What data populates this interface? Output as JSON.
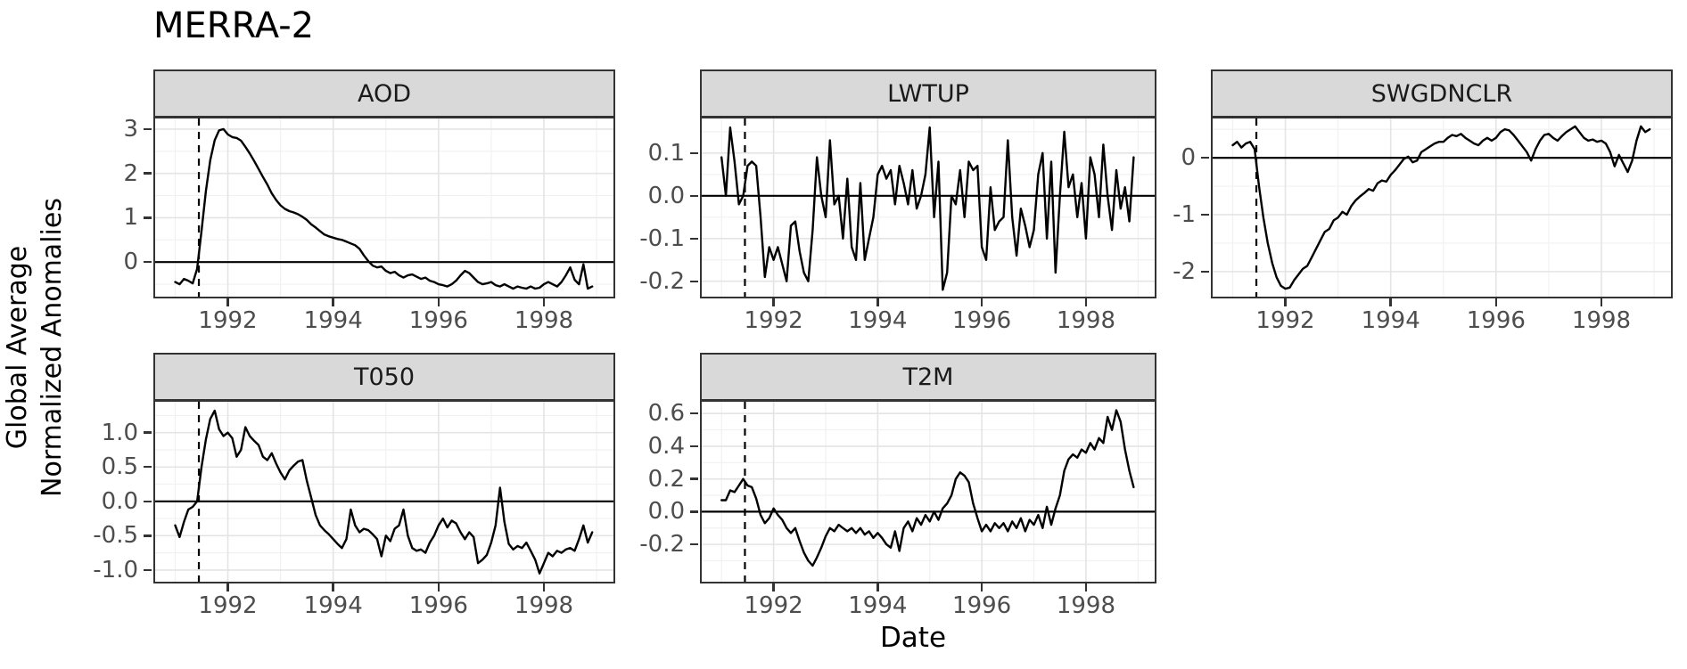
{
  "figure": {
    "title": "MERRA-2"
  },
  "axes": {
    "x_label": "Date",
    "y_label_line1": "Global Average",
    "y_label_line2": "Normalized Anomalies"
  },
  "colors": {
    "series_line": "#000000",
    "zero_line": "#000000",
    "event_line": "#000000",
    "strip_bg": "#d9d9d9",
    "panel_border": "#333333",
    "grid_major": "#e4e4e4",
    "grid_minor": "#f1f1f1",
    "tick_label": "#4d4d4d"
  },
  "chart_data": [
    {
      "type": "line",
      "title": "AOD",
      "xlabel": "Date",
      "ylabel": "Global Average Normalized Anomalies",
      "x_start": 1991.0,
      "x_step_years": 0.08333,
      "xlim": [
        1990.62,
        1999.32
      ],
      "ylim": [
        -0.78,
        3.24
      ],
      "xticks": [
        1992,
        1994,
        1996,
        1998
      ],
      "xtick_labels": [
        "1992",
        "1994",
        "1996",
        "1998"
      ],
      "ytick_values": [
        3,
        2,
        1,
        0
      ],
      "ytick_labels": [
        "3",
        "2",
        "1",
        "0"
      ],
      "hline": 0,
      "vline_dashed": 1991.45,
      "grid": true,
      "values": [
        -0.45,
        -0.5,
        -0.38,
        -0.42,
        -0.48,
        -0.15,
        0.7,
        1.6,
        2.3,
        2.75,
        2.97,
        3.0,
        2.88,
        2.82,
        2.8,
        2.74,
        2.6,
        2.45,
        2.28,
        2.1,
        1.92,
        1.75,
        1.55,
        1.4,
        1.28,
        1.2,
        1.15,
        1.12,
        1.08,
        1.02,
        0.95,
        0.85,
        0.78,
        0.7,
        0.62,
        0.58,
        0.55,
        0.52,
        0.5,
        0.46,
        0.42,
        0.38,
        0.3,
        0.15,
        0.02,
        -0.08,
        -0.12,
        -0.1,
        -0.2,
        -0.25,
        -0.22,
        -0.3,
        -0.35,
        -0.3,
        -0.28,
        -0.33,
        -0.38,
        -0.35,
        -0.42,
        -0.45,
        -0.5,
        -0.52,
        -0.55,
        -0.5,
        -0.42,
        -0.3,
        -0.2,
        -0.25,
        -0.35,
        -0.45,
        -0.5,
        -0.48,
        -0.45,
        -0.52,
        -0.55,
        -0.5,
        -0.55,
        -0.6,
        -0.55,
        -0.58,
        -0.6,
        -0.55,
        -0.6,
        -0.58,
        -0.5,
        -0.45,
        -0.5,
        -0.55,
        -0.45,
        -0.3,
        -0.12,
        -0.4,
        -0.5,
        -0.05,
        -0.6,
        -0.55
      ]
    },
    {
      "type": "line",
      "title": "LWTUP",
      "xlabel": "Date",
      "ylabel": "Global Average Normalized Anomalies",
      "x_start": 1991.0,
      "x_step_years": 0.08333,
      "xlim": [
        1990.62,
        1999.32
      ],
      "ylim": [
        -0.236,
        0.181
      ],
      "xticks": [
        1992,
        1994,
        1996,
        1998
      ],
      "xtick_labels": [
        "1992",
        "1994",
        "1996",
        "1998"
      ],
      "ytick_values": [
        0.1,
        0.0,
        -0.1,
        -0.2
      ],
      "ytick_labels": [
        "0.1",
        "0.0",
        "-0.1",
        "-0.2"
      ],
      "hline": 0,
      "vline_dashed": 1991.45,
      "grid": true,
      "values": [
        0.09,
        0.0,
        0.16,
        0.08,
        -0.02,
        0.0,
        0.07,
        0.08,
        0.07,
        -0.05,
        -0.19,
        -0.12,
        -0.15,
        -0.12,
        -0.16,
        -0.2,
        -0.07,
        -0.06,
        -0.13,
        -0.18,
        -0.2,
        -0.08,
        0.09,
        0.0,
        -0.05,
        0.13,
        -0.02,
        0.0,
        -0.1,
        0.04,
        -0.12,
        -0.15,
        0.03,
        -0.15,
        -0.1,
        -0.05,
        0.05,
        0.07,
        0.04,
        0.06,
        -0.02,
        0.07,
        0.03,
        -0.02,
        0.06,
        -0.03,
        0.0,
        0.05,
        0.16,
        -0.05,
        0.08,
        -0.22,
        -0.18,
        0.0,
        -0.02,
        0.06,
        -0.05,
        0.08,
        0.06,
        0.07,
        -0.12,
        -0.15,
        0.02,
        -0.08,
        -0.06,
        -0.05,
        0.13,
        -0.05,
        -0.14,
        -0.03,
        -0.07,
        -0.12,
        -0.08,
        0.05,
        0.1,
        -0.1,
        0.08,
        -0.18,
        0.0,
        0.15,
        0.02,
        0.05,
        -0.05,
        0.03,
        -0.1,
        0.09,
        0.05,
        -0.05,
        0.12,
        0.0,
        -0.08,
        0.06,
        -0.03,
        0.02,
        -0.06,
        0.09
      ]
    },
    {
      "type": "line",
      "title": "SWGDNCLR",
      "xlabel": "Date",
      "ylabel": "Global Average Normalized Anomalies",
      "x_start": 1991.0,
      "x_step_years": 0.08333,
      "xlim": [
        1990.62,
        1999.32
      ],
      "ylim": [
        -2.44,
        0.69
      ],
      "xticks": [
        1992,
        1994,
        1996,
        1998
      ],
      "xtick_labels": [
        "1992",
        "1994",
        "1996",
        "1998"
      ],
      "ytick_values": [
        0,
        -1,
        -2
      ],
      "ytick_labels": [
        "0",
        "-1",
        "-2"
      ],
      "hline": 0,
      "vline_dashed": 1991.45,
      "grid": true,
      "values": [
        0.22,
        0.28,
        0.18,
        0.25,
        0.28,
        0.15,
        -0.5,
        -1.05,
        -1.5,
        -1.85,
        -2.1,
        -2.25,
        -2.3,
        -2.28,
        -2.15,
        -2.05,
        -1.95,
        -1.9,
        -1.75,
        -1.6,
        -1.45,
        -1.3,
        -1.25,
        -1.1,
        -1.05,
        -0.95,
        -1.0,
        -0.85,
        -0.75,
        -0.68,
        -0.62,
        -0.55,
        -0.58,
        -0.45,
        -0.4,
        -0.42,
        -0.3,
        -0.22,
        -0.12,
        -0.02,
        0.02,
        -0.08,
        -0.05,
        0.1,
        0.15,
        0.2,
        0.25,
        0.28,
        0.28,
        0.35,
        0.4,
        0.38,
        0.42,
        0.35,
        0.3,
        0.25,
        0.22,
        0.3,
        0.35,
        0.3,
        0.35,
        0.45,
        0.5,
        0.48,
        0.4,
        0.3,
        0.2,
        0.1,
        -0.05,
        0.15,
        0.3,
        0.4,
        0.42,
        0.35,
        0.3,
        0.38,
        0.45,
        0.5,
        0.55,
        0.45,
        0.35,
        0.3,
        0.32,
        0.28,
        0.3,
        0.25,
        0.1,
        -0.15,
        0.05,
        -0.1,
        -0.25,
        -0.05,
        0.3,
        0.55,
        0.45,
        0.5
      ]
    },
    {
      "type": "line",
      "title": "T050",
      "xlabel": "Date",
      "ylabel": "Global Average Normalized Anomalies",
      "x_start": 1991.0,
      "x_step_years": 0.08333,
      "xlim": [
        1990.62,
        1999.32
      ],
      "ylim": [
        -1.17,
        1.45
      ],
      "xticks": [
        1992,
        1994,
        1996,
        1998
      ],
      "xtick_labels": [
        "1992",
        "1994",
        "1996",
        "1998"
      ],
      "ytick_values": [
        1.0,
        0.5,
        0.0,
        -0.5,
        -1.0
      ],
      "ytick_labels": [
        "1.0",
        "0.5",
        "0.0",
        "-0.5",
        "-1.0"
      ],
      "hline": 0,
      "vline_dashed": 1991.45,
      "grid": true,
      "values": [
        -0.35,
        -0.52,
        -0.3,
        -0.12,
        -0.08,
        0.0,
        0.5,
        0.9,
        1.2,
        1.32,
        1.05,
        0.95,
        1.0,
        0.92,
        0.65,
        0.75,
        1.08,
        0.95,
        0.88,
        0.82,
        0.65,
        0.6,
        0.7,
        0.55,
        0.42,
        0.32,
        0.45,
        0.52,
        0.58,
        0.6,
        0.3,
        0.05,
        -0.2,
        -0.35,
        -0.42,
        -0.48,
        -0.55,
        -0.62,
        -0.68,
        -0.55,
        -0.12,
        -0.35,
        -0.45,
        -0.4,
        -0.42,
        -0.48,
        -0.55,
        -0.8,
        -0.5,
        -0.58,
        -0.4,
        -0.35,
        -0.12,
        -0.5,
        -0.68,
        -0.72,
        -0.7,
        -0.75,
        -0.6,
        -0.5,
        -0.35,
        -0.25,
        -0.38,
        -0.28,
        -0.32,
        -0.45,
        -0.55,
        -0.45,
        -0.52,
        -0.9,
        -0.85,
        -0.78,
        -0.6,
        -0.35,
        0.2,
        -0.3,
        -0.62,
        -0.7,
        -0.65,
        -0.68,
        -0.6,
        -0.72,
        -0.85,
        -1.05,
        -0.9,
        -0.75,
        -0.8,
        -0.72,
        -0.75,
        -0.7,
        -0.68,
        -0.72,
        -0.55,
        -0.35,
        -0.6,
        -0.45
      ]
    },
    {
      "type": "line",
      "title": "T2M",
      "xlabel": "Date",
      "ylabel": "Global Average Normalized Anomalies",
      "x_start": 1991.0,
      "x_step_years": 0.08333,
      "xlim": [
        1990.62,
        1999.32
      ],
      "ylim": [
        -0.428,
        0.672
      ],
      "xticks": [
        1992,
        1994,
        1996,
        1998
      ],
      "xtick_labels": [
        "1992",
        "1994",
        "1996",
        "1998"
      ],
      "ytick_values": [
        0.6,
        0.4,
        0.2,
        0.0,
        -0.2
      ],
      "ytick_labels": [
        "0.6",
        "0.4",
        "0.2",
        "0.0",
        "-0.2"
      ],
      "hline": 0,
      "vline_dashed": 1991.45,
      "grid": true,
      "values": [
        0.07,
        0.07,
        0.13,
        0.12,
        0.16,
        0.2,
        0.16,
        0.15,
        0.08,
        -0.02,
        -0.07,
        -0.04,
        0.02,
        -0.02,
        -0.05,
        -0.1,
        -0.13,
        -0.1,
        -0.18,
        -0.25,
        -0.3,
        -0.33,
        -0.28,
        -0.22,
        -0.15,
        -0.1,
        -0.12,
        -0.08,
        -0.1,
        -0.12,
        -0.1,
        -0.13,
        -0.1,
        -0.14,
        -0.12,
        -0.16,
        -0.13,
        -0.16,
        -0.2,
        -0.22,
        -0.12,
        -0.24,
        -0.1,
        -0.06,
        -0.12,
        -0.04,
        -0.08,
        -0.02,
        -0.06,
        0.0,
        -0.05,
        0.02,
        0.05,
        0.1,
        0.2,
        0.24,
        0.22,
        0.18,
        0.05,
        -0.04,
        -0.12,
        -0.08,
        -0.12,
        -0.07,
        -0.1,
        -0.07,
        -0.12,
        -0.06,
        -0.1,
        -0.04,
        -0.12,
        -0.05,
        -0.08,
        -0.02,
        -0.1,
        0.03,
        -0.08,
        0.02,
        0.1,
        0.25,
        0.32,
        0.35,
        0.33,
        0.38,
        0.36,
        0.42,
        0.38,
        0.45,
        0.42,
        0.58,
        0.5,
        0.62,
        0.55,
        0.38,
        0.25,
        0.15
      ]
    }
  ]
}
